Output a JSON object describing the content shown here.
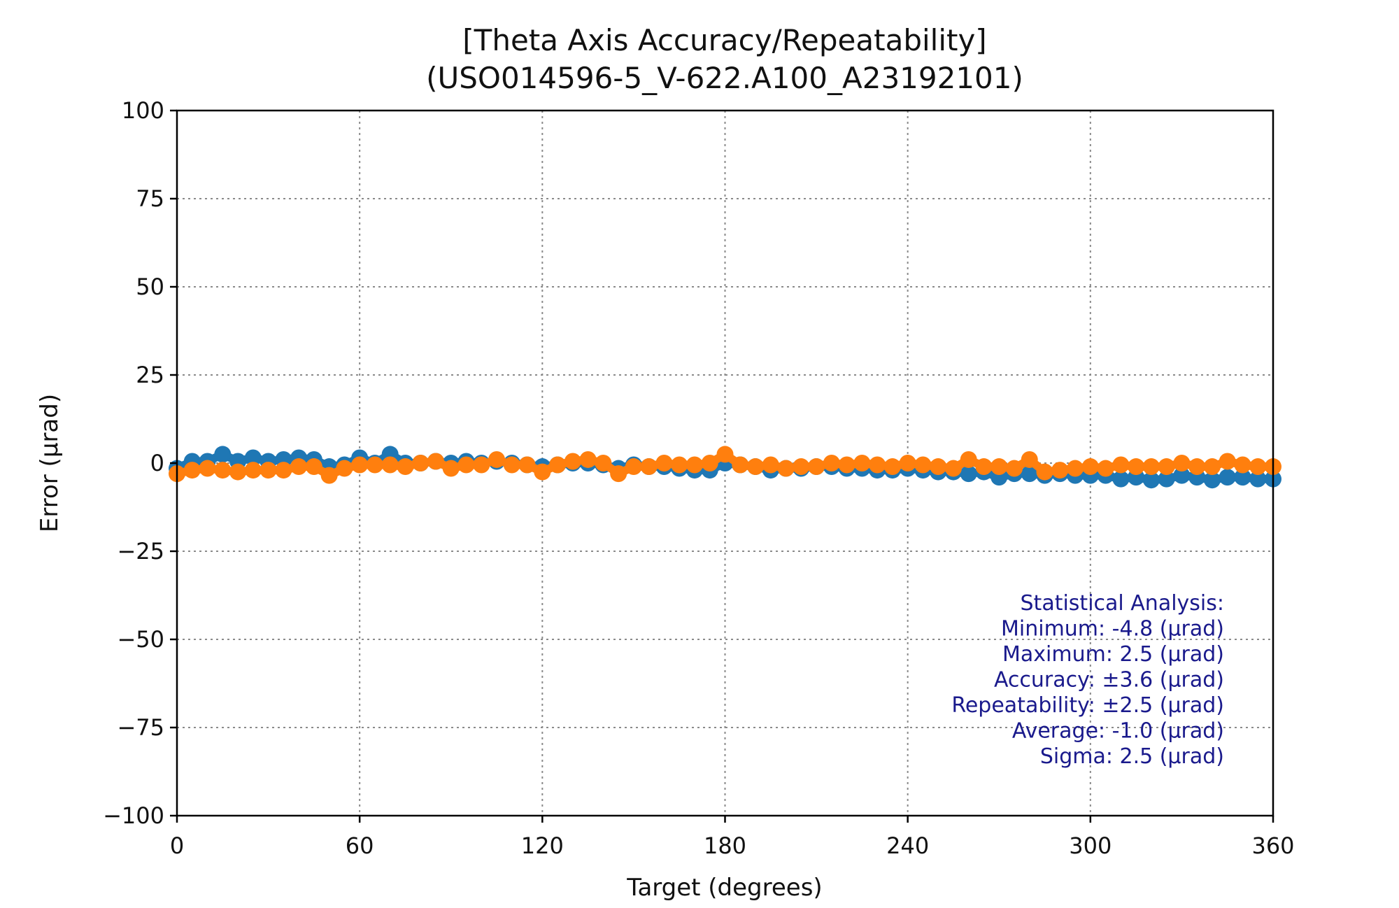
{
  "chart_data": {
    "type": "scatter",
    "title": "[Theta Axis Accuracy/Repeatability]",
    "subtitle": "(USO014596-5_V-622.A100_A23192101)",
    "xlabel": "Target (degrees)",
    "ylabel": "Error (μrad)",
    "xlim": [
      0,
      360
    ],
    "ylim": [
      -100,
      100
    ],
    "xticks": [
      0,
      60,
      120,
      180,
      240,
      300,
      360
    ],
    "xtick_labels": [
      "0",
      "60",
      "120",
      "180",
      "240",
      "300",
      "360"
    ],
    "yticks": [
      100,
      75,
      50,
      25,
      0,
      -25,
      -50,
      -75,
      -100
    ],
    "ytick_labels": [
      "100",
      "75",
      "50",
      "25",
      "0",
      "−25",
      "−50",
      "−75",
      "−100"
    ],
    "grid": true,
    "colors": {
      "series1": "#1f77b4",
      "series2": "#ff7f0e",
      "stats": "#1a1a8c"
    },
    "series": [
      {
        "x": [
          0,
          5,
          10,
          15,
          20,
          25,
          30,
          35,
          40,
          45,
          50,
          55,
          60,
          65,
          70,
          75,
          80,
          85,
          90,
          95,
          100,
          105,
          110,
          115,
          120,
          125,
          130,
          135,
          140,
          145,
          150,
          155,
          160,
          165,
          170,
          175,
          180,
          185,
          190,
          195,
          200,
          205,
          210,
          215,
          220,
          225,
          230,
          235,
          240,
          245,
          250,
          255,
          260,
          265,
          270,
          275,
          280,
          285,
          290,
          295,
          300,
          305,
          310,
          315,
          320,
          325,
          330,
          335,
          340,
          345,
          350,
          355,
          360
        ],
        "y": [
          -1.5,
          0.5,
          0.5,
          2.5,
          0.5,
          1.5,
          0.5,
          1,
          1.5,
          1,
          -1,
          -0.5,
          1.5,
          0,
          2.5,
          0,
          0,
          0.5,
          0,
          0.5,
          0,
          0.5,
          0,
          -0.5,
          -1,
          -0.5,
          0,
          0,
          -0.5,
          -1.5,
          -0.5,
          -1,
          -1,
          -1.5,
          -2,
          -2,
          0,
          -0.5,
          -1,
          -2,
          -1.5,
          -1.5,
          -1,
          -1,
          -1.5,
          -1.5,
          -2,
          -2,
          -1.5,
          -2,
          -2.5,
          -2.5,
          -3,
          -2.5,
          -4,
          -3,
          -3,
          -3.5,
          -3,
          -3.5,
          -3.5,
          -3.5,
          -4.5,
          -4,
          -4.8,
          -4.5,
          -3.5,
          -4,
          -4.8,
          -4,
          -4,
          -4.5,
          -4.5
        ]
      },
      {
        "x": [
          0,
          5,
          10,
          15,
          20,
          25,
          30,
          35,
          40,
          45,
          50,
          55,
          60,
          65,
          70,
          75,
          80,
          85,
          90,
          95,
          100,
          105,
          110,
          115,
          120,
          125,
          130,
          135,
          140,
          145,
          150,
          155,
          160,
          165,
          170,
          175,
          180,
          185,
          190,
          195,
          200,
          205,
          210,
          215,
          220,
          225,
          230,
          235,
          240,
          245,
          250,
          255,
          260,
          265,
          270,
          275,
          280,
          285,
          290,
          295,
          300,
          305,
          310,
          315,
          320,
          325,
          330,
          335,
          340,
          345,
          350,
          355,
          360
        ],
        "y": [
          -3,
          -2,
          -1.5,
          -2,
          -2.5,
          -2,
          -2,
          -2,
          -1,
          -1,
          -3.5,
          -1.5,
          -0.5,
          -0.5,
          -0.5,
          -1,
          0,
          0.5,
          -1.5,
          -0.5,
          -0.5,
          1,
          -0.5,
          -0.5,
          -2.5,
          -0.5,
          0.5,
          1,
          0,
          -3,
          -1,
          -1,
          0,
          -0.5,
          -0.5,
          0,
          2.5,
          -0.5,
          -1,
          -0.5,
          -1.5,
          -1,
          -1,
          0,
          -0.5,
          0,
          -0.5,
          -1,
          0,
          -0.5,
          -1,
          -1.5,
          1,
          -1,
          -1,
          -1.5,
          1,
          -2.5,
          -2,
          -1.5,
          -1,
          -1.5,
          -0.5,
          -1,
          -1,
          -1,
          0,
          -1,
          -1,
          0.5,
          -0.5,
          -1,
          -1
        ]
      }
    ],
    "annotation": [
      "Statistical Analysis:",
      "Minimum: -4.8 (μrad)",
      "Maximum: 2.5 (μrad)",
      "Accuracy: ±3.6 (μrad)",
      "Repeatability: ±2.5 (μrad)",
      "Average: -1.0 (μrad)",
      "Sigma: 2.5 (μrad)"
    ]
  }
}
